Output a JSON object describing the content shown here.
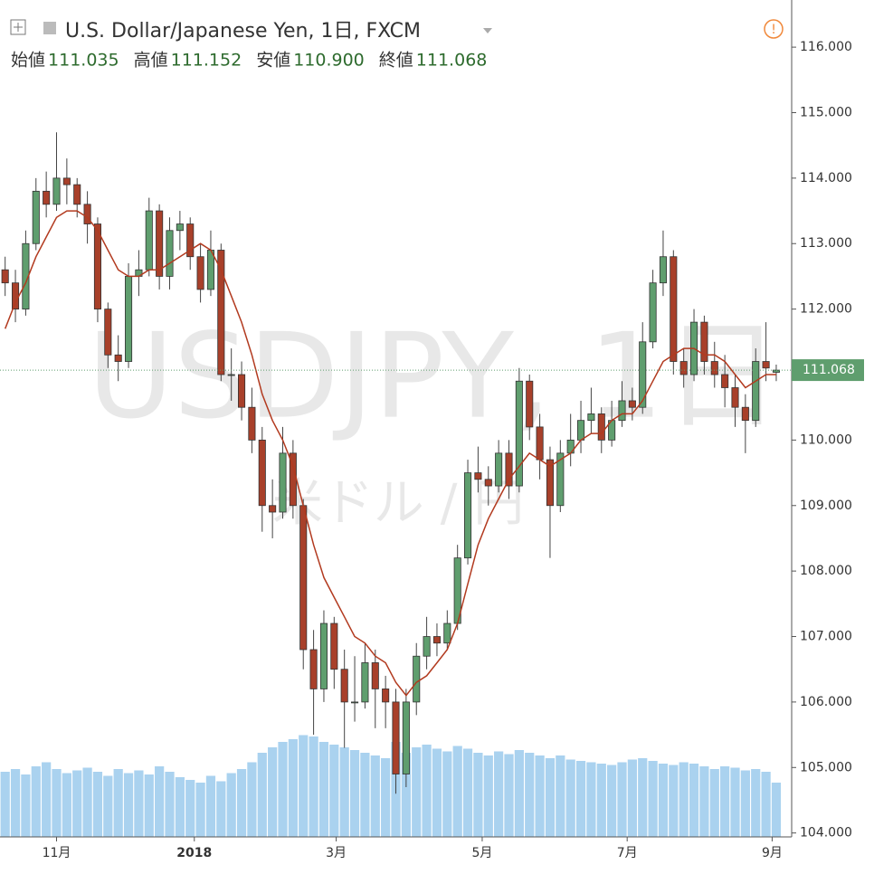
{
  "chart_data": {
    "type": "candlestick",
    "title": "U.S. Dollar/Japanese Yen, 1日, FXCM",
    "ohlc": [
      {
        "label": "始値",
        "value": "111.035"
      },
      {
        "label": "高値",
        "value": "111.152"
      },
      {
        "label": "安値",
        "value": "110.900"
      },
      {
        "label": "終値",
        "value": "111.068"
      }
    ],
    "watermark": "USDJPY, 1日",
    "watermark_sub": "米ドル / 円",
    "up_color": "#5f9e6e",
    "down_color": "#a8402a",
    "ma_color": "#b23a1f",
    "volume_color": "#8ec3ea",
    "last_price": {
      "value": 111.068,
      "label": "111.068"
    },
    "ylim": [
      103.94,
      116.72
    ],
    "yticks": [
      {
        "value": 104,
        "label": "104.000"
      },
      {
        "value": 105,
        "label": "105.000"
      },
      {
        "value": 106,
        "label": "106.000"
      },
      {
        "value": 107,
        "label": "107.000"
      },
      {
        "value": 108,
        "label": "108.000"
      },
      {
        "value": 109,
        "label": "109.000"
      },
      {
        "value": 110,
        "label": "110.000"
      },
      {
        "value": 111,
        "label": "111.000"
      },
      {
        "value": 112,
        "label": "112.000"
      },
      {
        "value": 113,
        "label": "113.000"
      },
      {
        "value": 114,
        "label": "114.000"
      },
      {
        "value": 115,
        "label": "115.000"
      },
      {
        "value": 116,
        "label": "116.000"
      }
    ],
    "xlim": [
      -0.5,
      76.5
    ],
    "xticks": [
      {
        "value": 5,
        "label": "11月"
      },
      {
        "value": 18.4,
        "label": "2018"
      },
      {
        "value": 32.2,
        "label": "3月"
      },
      {
        "value": 46.4,
        "label": "5月"
      },
      {
        "value": 60.5,
        "label": "7月"
      },
      {
        "value": 74.6,
        "label": "9月"
      }
    ],
    "candles": [
      [
        112.6,
        112.8,
        112.2,
        112.4
      ],
      [
        112.4,
        112.6,
        111.8,
        112.0
      ],
      [
        112.0,
        113.2,
        111.9,
        113.0
      ],
      [
        113.0,
        114.0,
        112.9,
        113.8
      ],
      [
        113.8,
        114.1,
        113.4,
        113.6
      ],
      [
        113.6,
        114.7,
        113.5,
        114.0
      ],
      [
        114.0,
        114.3,
        113.6,
        113.9
      ],
      [
        113.9,
        114.0,
        113.4,
        113.6
      ],
      [
        113.6,
        113.8,
        113.0,
        113.3
      ],
      [
        113.3,
        113.4,
        111.8,
        112.0
      ],
      [
        112.0,
        112.1,
        111.1,
        111.3
      ],
      [
        111.3,
        111.6,
        110.9,
        111.2
      ],
      [
        111.2,
        112.7,
        111.1,
        112.5
      ],
      [
        112.5,
        112.9,
        112.2,
        112.6
      ],
      [
        112.6,
        113.7,
        112.5,
        113.5
      ],
      [
        113.5,
        113.6,
        112.3,
        112.5
      ],
      [
        112.5,
        113.4,
        112.3,
        113.2
      ],
      [
        113.2,
        113.5,
        112.9,
        113.3
      ],
      [
        113.3,
        113.4,
        112.6,
        112.8
      ],
      [
        112.8,
        113.0,
        112.1,
        112.3
      ],
      [
        112.3,
        113.2,
        112.2,
        112.9
      ],
      [
        112.9,
        113.0,
        110.9,
        111.0
      ],
      [
        111.0,
        111.4,
        110.6,
        111.0
      ],
      [
        111.0,
        111.2,
        110.3,
        110.5
      ],
      [
        110.5,
        110.8,
        109.8,
        110.0
      ],
      [
        110.0,
        110.2,
        108.6,
        109.0
      ],
      [
        109.0,
        109.4,
        108.5,
        108.9
      ],
      [
        108.9,
        110.2,
        108.8,
        109.8
      ],
      [
        109.8,
        110.0,
        108.8,
        109.0
      ],
      [
        109.0,
        109.1,
        106.5,
        106.8
      ],
      [
        106.8,
        107.1,
        105.5,
        106.2
      ],
      [
        106.2,
        107.4,
        106.0,
        107.2
      ],
      [
        107.2,
        107.3,
        106.2,
        106.5
      ],
      [
        106.5,
        106.8,
        105.3,
        106.0
      ],
      [
        106.0,
        106.7,
        105.7,
        106.0
      ],
      [
        106.0,
        106.9,
        105.9,
        106.6
      ],
      [
        106.6,
        106.8,
        105.6,
        106.2
      ],
      [
        106.2,
        106.4,
        105.6,
        106.0
      ],
      [
        106.0,
        106.2,
        104.6,
        104.9
      ],
      [
        104.9,
        106.2,
        104.7,
        106.0
      ],
      [
        106.0,
        106.9,
        105.8,
        106.7
      ],
      [
        106.7,
        107.3,
        106.5,
        107.0
      ],
      [
        107.0,
        107.2,
        106.7,
        106.9
      ],
      [
        106.9,
        107.4,
        106.8,
        107.2
      ],
      [
        107.2,
        108.4,
        107.1,
        108.2
      ],
      [
        108.2,
        109.7,
        108.1,
        109.5
      ],
      [
        109.5,
        109.9,
        109.2,
        109.4
      ],
      [
        109.4,
        109.6,
        109.0,
        109.3
      ],
      [
        109.3,
        110.0,
        109.2,
        109.8
      ],
      [
        109.8,
        110.0,
        109.1,
        109.3
      ],
      [
        109.3,
        111.1,
        109.2,
        110.9
      ],
      [
        110.9,
        111.0,
        110.0,
        110.2
      ],
      [
        110.2,
        110.4,
        109.4,
        109.7
      ],
      [
        109.7,
        109.9,
        108.2,
        109.0
      ],
      [
        109.0,
        110.0,
        108.9,
        109.8
      ],
      [
        109.8,
        110.4,
        109.6,
        110.0
      ],
      [
        110.0,
        110.6,
        109.8,
        110.3
      ],
      [
        110.3,
        110.8,
        110.1,
        110.4
      ],
      [
        110.4,
        110.5,
        109.8,
        110.0
      ],
      [
        110.0,
        110.6,
        109.9,
        110.3
      ],
      [
        110.3,
        110.9,
        110.2,
        110.6
      ],
      [
        110.6,
        110.8,
        110.3,
        110.5
      ],
      [
        110.5,
        111.8,
        110.4,
        111.5
      ],
      [
        111.5,
        112.6,
        111.4,
        112.4
      ],
      [
        112.4,
        113.2,
        112.2,
        112.8
      ],
      [
        112.8,
        112.9,
        111.0,
        111.2
      ],
      [
        111.2,
        111.4,
        110.8,
        111.0
      ],
      [
        111.0,
        112.0,
        110.9,
        111.8
      ],
      [
        111.8,
        111.9,
        111.0,
        111.2
      ],
      [
        111.2,
        111.5,
        110.8,
        111.0
      ],
      [
        111.0,
        111.3,
        110.5,
        110.8
      ],
      [
        110.8,
        111.0,
        110.2,
        110.5
      ],
      [
        110.5,
        110.7,
        109.8,
        110.3
      ],
      [
        110.3,
        111.4,
        110.2,
        111.2
      ],
      [
        111.2,
        111.8,
        110.9,
        111.1
      ],
      [
        111.035,
        111.152,
        110.9,
        111.068
      ]
    ],
    "ma": [
      111.7,
      112.1,
      112.4,
      112.8,
      113.1,
      113.4,
      113.5,
      113.5,
      113.4,
      113.2,
      112.9,
      112.6,
      112.5,
      112.5,
      112.6,
      112.6,
      112.7,
      112.8,
      112.9,
      113.0,
      112.9,
      112.6,
      112.2,
      111.8,
      111.3,
      110.7,
      110.3,
      110.0,
      109.6,
      109.0,
      108.4,
      107.9,
      107.6,
      107.3,
      107.0,
      106.9,
      106.7,
      106.6,
      106.3,
      106.1,
      106.3,
      106.4,
      106.6,
      106.8,
      107.2,
      107.8,
      108.4,
      108.8,
      109.1,
      109.4,
      109.6,
      109.8,
      109.7,
      109.6,
      109.7,
      109.8,
      110.0,
      110.1,
      110.1,
      110.3,
      110.4,
      110.4,
      110.6,
      110.9,
      111.2,
      111.3,
      111.4,
      111.4,
      111.3,
      111.3,
      111.2,
      111.0,
      110.8,
      110.9,
      111.0,
      111.0
    ],
    "volume": [
      48,
      50,
      46,
      52,
      55,
      50,
      47,
      49,
      51,
      48,
      45,
      50,
      47,
      49,
      46,
      52,
      48,
      44,
      42,
      40,
      45,
      41,
      47,
      50,
      55,
      62,
      66,
      70,
      72,
      75,
      74,
      70,
      68,
      66,
      64,
      62,
      60,
      58,
      70,
      62,
      66,
      68,
      65,
      63,
      67,
      65,
      62,
      60,
      63,
      61,
      64,
      62,
      60,
      58,
      60,
      57,
      56,
      55,
      54,
      53,
      55,
      57,
      58,
      56,
      54,
      53,
      55,
      54,
      52,
      50,
      52,
      51,
      49,
      50,
      48,
      40
    ],
    "vlim": [
      0,
      100
    ]
  }
}
